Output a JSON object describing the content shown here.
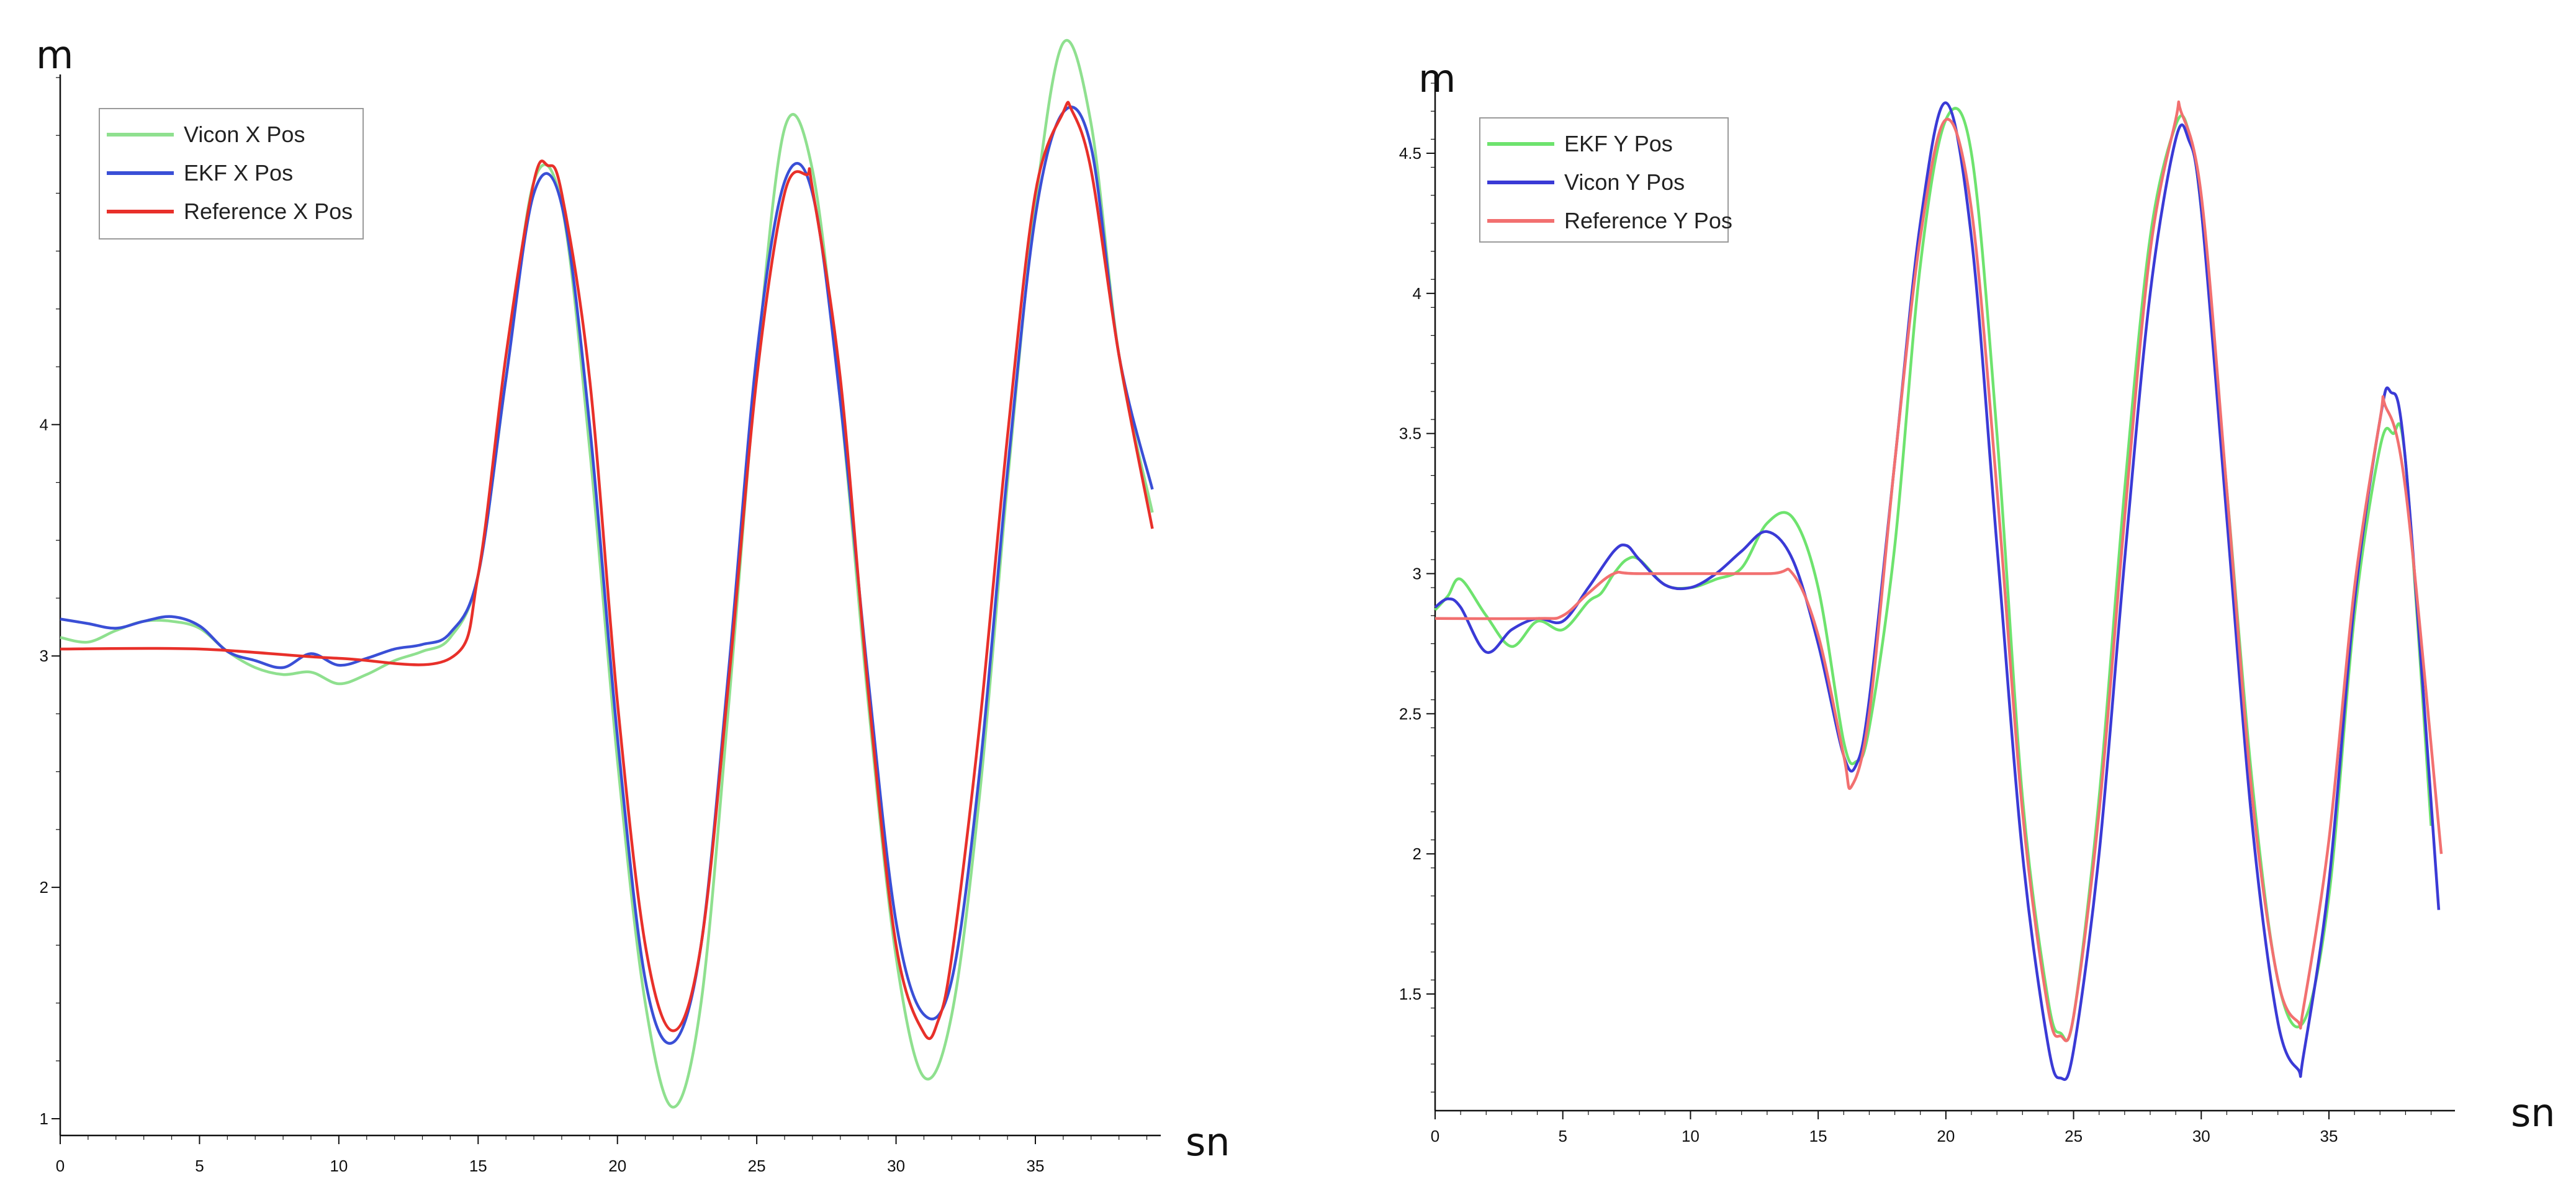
{
  "chart_data": [
    {
      "type": "line",
      "title": "",
      "xlabel": "sn",
      "ylabel": "m",
      "xlim": [
        0,
        39.5
      ],
      "ylim": [
        1,
        5.5
      ],
      "xticks": [
        0,
        5,
        10,
        15,
        20,
        25,
        30,
        35
      ],
      "xtick_labels": [
        "0",
        "5",
        "10",
        "15",
        "20",
        "25",
        "30",
        "35"
      ],
      "yticks": [
        1,
        2,
        3,
        4
      ],
      "ytick_labels": [
        "1",
        "2",
        "3",
        "4"
      ],
      "grid": false,
      "legend_position": "top-left",
      "series": [
        {
          "name": "Vicon X Pos",
          "color": "#8fe08f",
          "x": [
            0,
            1,
            2,
            3,
            4,
            5,
            6,
            7,
            8,
            9,
            10,
            11,
            12,
            13,
            14,
            15,
            16,
            17,
            18,
            19,
            20,
            21,
            22,
            23,
            24,
            25,
            26,
            27,
            28,
            29,
            30,
            31,
            32,
            33,
            34,
            35,
            36,
            37,
            38,
            39.2
          ],
          "y": [
            3.08,
            3.06,
            3.11,
            3.15,
            3.15,
            3.12,
            3.02,
            2.95,
            2.92,
            2.93,
            2.88,
            2.92,
            2.98,
            3.02,
            3.08,
            3.35,
            4.2,
            5.05,
            4.95,
            3.9,
            2.55,
            1.5,
            1.05,
            1.5,
            2.8,
            4.25,
            5.28,
            5.1,
            4.1,
            2.8,
            1.7,
            1.18,
            1.45,
            2.4,
            3.75,
            4.95,
            5.65,
            5.3,
            4.3,
            3.62
          ]
        },
        {
          "name": "EKF X Pos",
          "color": "#3a4fd6",
          "x": [
            0,
            1,
            2,
            3,
            4,
            5,
            6,
            7,
            8,
            9,
            10,
            11,
            12,
            13,
            14,
            15,
            16,
            17,
            18,
            19,
            20,
            21,
            22,
            23,
            24,
            25,
            26,
            27,
            28,
            29,
            30,
            31,
            32,
            33,
            34,
            35,
            36,
            37,
            38,
            39.2
          ],
          "y": [
            3.16,
            3.14,
            3.12,
            3.15,
            3.17,
            3.13,
            3.02,
            2.98,
            2.95,
            3.01,
            2.96,
            2.99,
            3.03,
            3.05,
            3.1,
            3.35,
            4.2,
            5.0,
            4.95,
            4.0,
            2.65,
            1.6,
            1.33,
            1.75,
            2.95,
            4.3,
            5.05,
            5.0,
            4.1,
            2.9,
            1.85,
            1.45,
            1.6,
            2.5,
            3.8,
            4.9,
            5.35,
            5.2,
            4.3,
            3.72
          ]
        },
        {
          "name": "Reference X Pos",
          "color": "#e8302a",
          "x": [
            0,
            5,
            10,
            14,
            15,
            16,
            17,
            17.5,
            18,
            19,
            20,
            21,
            22,
            23,
            24,
            25,
            26,
            26.8,
            27,
            28,
            29,
            30,
            31,
            31.5,
            32,
            33,
            34,
            35,
            36,
            36.3,
            37,
            38,
            39.2
          ],
          "y": [
            3.03,
            3.03,
            2.99,
            2.99,
            3.35,
            4.3,
            5.05,
            5.12,
            5.0,
            4.2,
            2.8,
            1.75,
            1.38,
            1.75,
            2.9,
            4.2,
            5.0,
            5.08,
            5.02,
            4.2,
            2.85,
            1.75,
            1.37,
            1.42,
            1.7,
            2.7,
            3.95,
            5.0,
            5.35,
            5.36,
            5.1,
            4.3,
            3.55
          ]
        }
      ]
    },
    {
      "type": "line",
      "title": "",
      "xlabel": "sn",
      "ylabel": "m",
      "xlim": [
        0,
        39.5
      ],
      "ylim": [
        1.05,
        4.75
      ],
      "xticks": [
        0,
        5,
        10,
        15,
        20,
        25,
        30,
        35
      ],
      "xtick_labels": [
        "0",
        "5",
        "10",
        "15",
        "20",
        "25",
        "30",
        "35"
      ],
      "yticks": [
        1.5,
        2,
        2.5,
        3,
        3.5,
        4,
        4.5
      ],
      "ytick_labels": [
        "1.5",
        "2",
        "2.5",
        "3",
        "3.5",
        "4",
        "4.5"
      ],
      "grid": false,
      "legend_position": "top-left",
      "series": [
        {
          "name": "EKF Y Pos",
          "color": "#6ee36e",
          "x": [
            0,
            0.5,
            1,
            2,
            3,
            4,
            5,
            6,
            6.5,
            7,
            7.5,
            8,
            9,
            10,
            11,
            12,
            13,
            14,
            15,
            16,
            16.5,
            17,
            18,
            19,
            20,
            21,
            22,
            23,
            24,
            24.5,
            25,
            26,
            27,
            28,
            29,
            29.5,
            30,
            31,
            32,
            33,
            34,
            35,
            36,
            37,
            37.5,
            38,
            39
          ],
          "y": [
            2.87,
            2.92,
            2.98,
            2.85,
            2.74,
            2.83,
            2.8,
            2.9,
            2.93,
            3.0,
            3.05,
            3.05,
            2.96,
            2.95,
            2.98,
            3.02,
            3.18,
            3.2,
            2.95,
            2.4,
            2.33,
            2.45,
            3.1,
            4.1,
            4.62,
            4.5,
            3.5,
            2.2,
            1.48,
            1.36,
            1.42,
            2.2,
            3.3,
            4.2,
            4.6,
            4.58,
            4.3,
            3.3,
            2.25,
            1.55,
            1.4,
            1.85,
            2.85,
            3.45,
            3.5,
            3.4,
            2.1
          ]
        },
        {
          "name": "Vicon Y Pos",
          "color": "#3a3ad6",
          "x": [
            0,
            0.5,
            1,
            2,
            3,
            4,
            5,
            6,
            7,
            7.5,
            8,
            9,
            10,
            11,
            12,
            13,
            14,
            15,
            16,
            16.5,
            17,
            18,
            19,
            20,
            21,
            22,
            23,
            24,
            24.5,
            25,
            26,
            27,
            28,
            29,
            29.5,
            30,
            31,
            32,
            33,
            33.8,
            34,
            35,
            36,
            37,
            37.4,
            38,
            39.3
          ],
          "y": [
            2.88,
            2.91,
            2.88,
            2.72,
            2.8,
            2.84,
            2.83,
            2.95,
            3.08,
            3.1,
            3.05,
            2.96,
            2.95,
            3.0,
            3.08,
            3.15,
            3.05,
            2.75,
            2.35,
            2.32,
            2.55,
            3.4,
            4.25,
            4.68,
            4.2,
            3.1,
            2.0,
            1.32,
            1.2,
            1.3,
            2.0,
            3.05,
            4.0,
            4.55,
            4.55,
            4.3,
            3.2,
            2.1,
            1.4,
            1.23,
            1.28,
            1.9,
            2.9,
            3.55,
            3.65,
            3.4,
            1.8
          ]
        },
        {
          "name": "Reference Y Pos",
          "color": "#f27070",
          "x": [
            0,
            4,
            5,
            6,
            7,
            8,
            13,
            14,
            15,
            16,
            16.3,
            17,
            18,
            19,
            20,
            21,
            22,
            23,
            24,
            24.5,
            25,
            26,
            27,
            28,
            29,
            29.2,
            30,
            31,
            32,
            33,
            33.8,
            34,
            35,
            36,
            37,
            37.2,
            38,
            39.4
          ],
          "y": [
            2.84,
            2.84,
            2.85,
            2.93,
            3.0,
            3.0,
            3.0,
            3.0,
            2.78,
            2.35,
            2.24,
            2.5,
            3.4,
            4.2,
            4.62,
            4.3,
            3.3,
            2.15,
            1.45,
            1.35,
            1.42,
            2.15,
            3.2,
            4.15,
            4.62,
            4.65,
            4.35,
            3.3,
            2.2,
            1.55,
            1.4,
            1.45,
            2.05,
            2.95,
            3.55,
            3.6,
            3.3,
            2.0
          ]
        }
      ]
    }
  ]
}
